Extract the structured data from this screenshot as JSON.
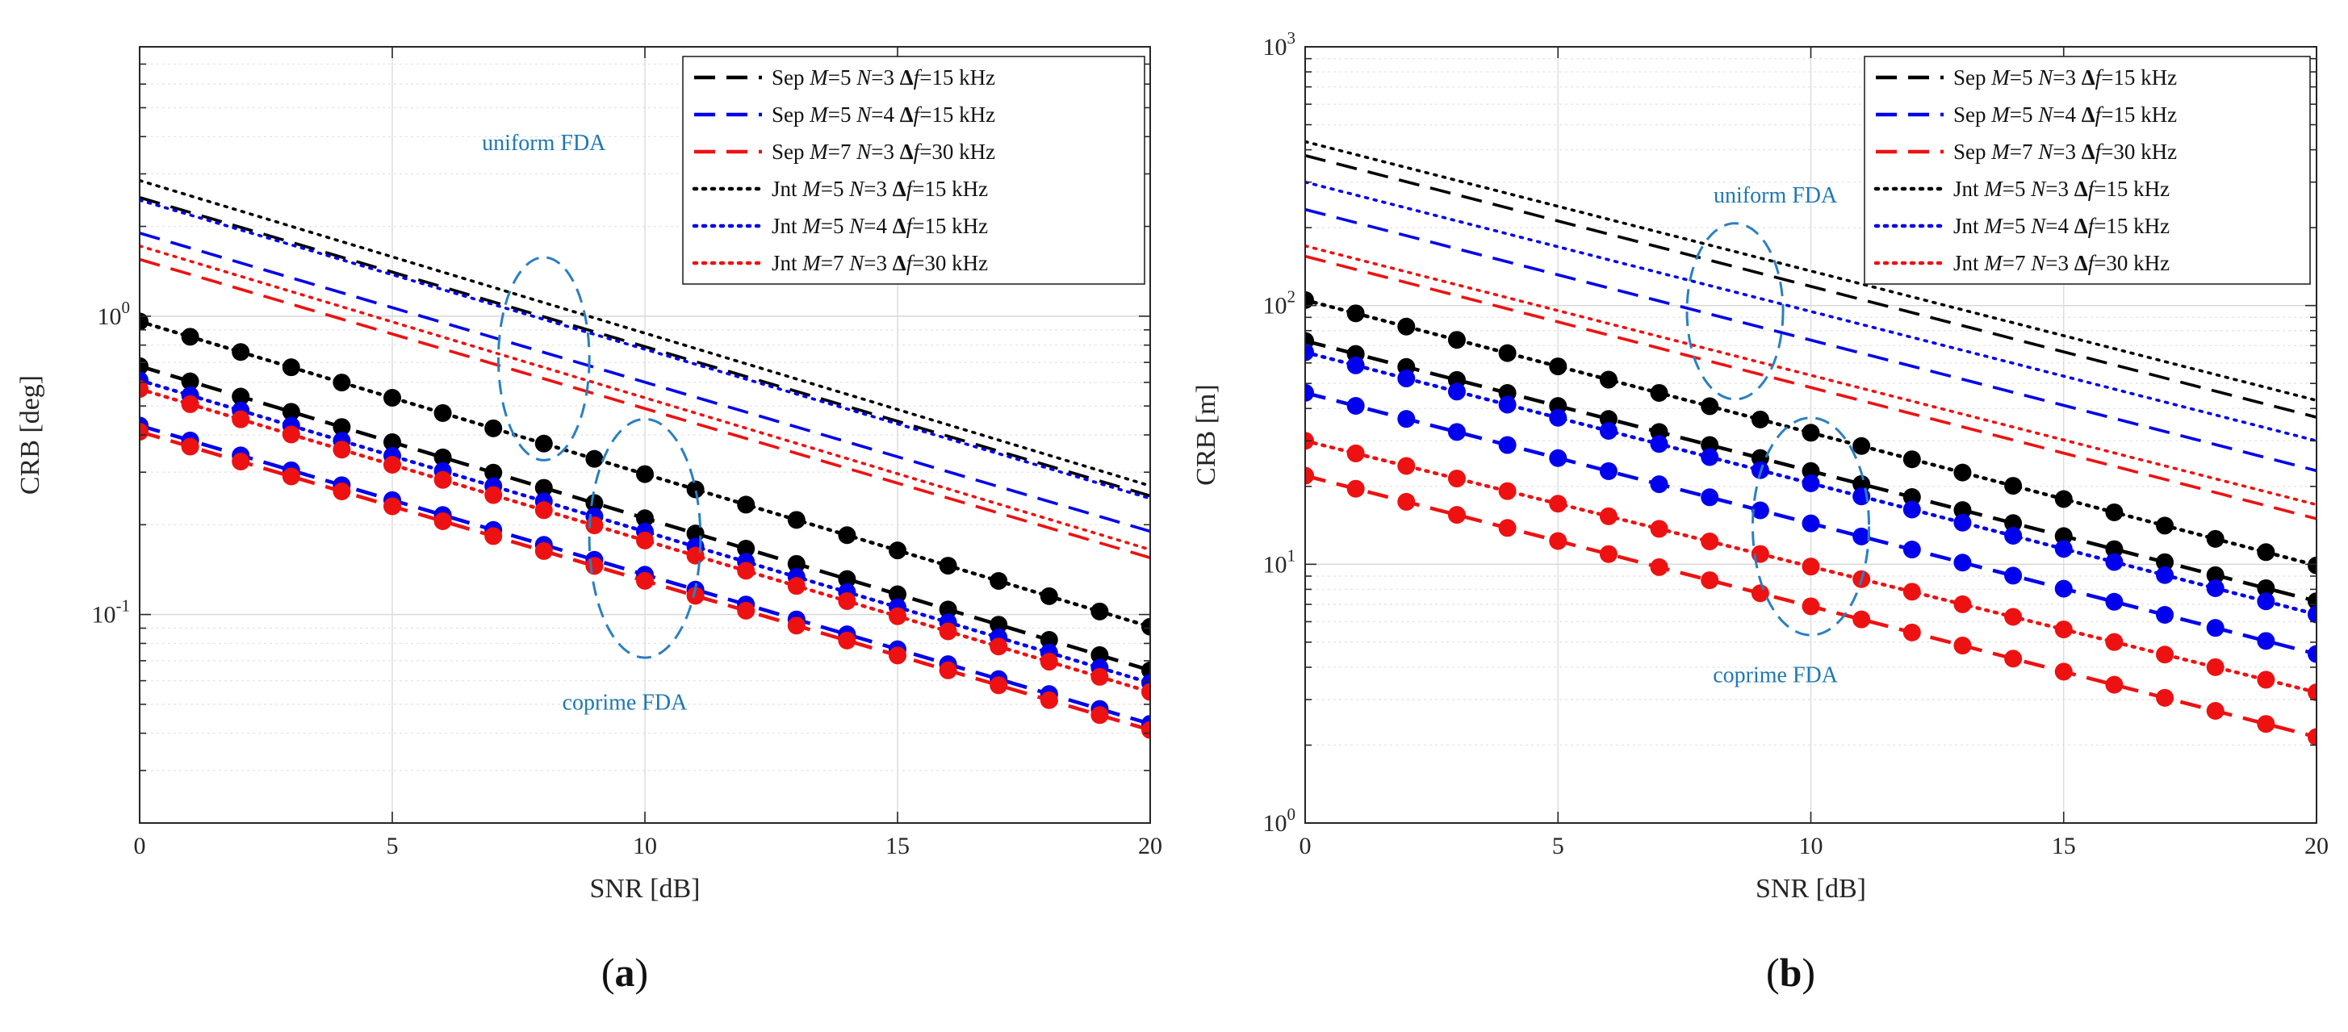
{
  "chart_data": [
    {
      "panel": "a",
      "type": "line",
      "subfigure_label": "(a)",
      "xlabel": "SNR [dB]",
      "ylabel": "CRB [deg]",
      "xlim": [
        0,
        20
      ],
      "ylim": [
        0.02,
        8
      ],
      "yscale": "log",
      "grid": true,
      "xticks": [
        0,
        5,
        10,
        15,
        20
      ],
      "xtick_labels": [
        "0",
        "5",
        "10",
        "15",
        "20"
      ],
      "yticks": [
        0.1,
        1
      ],
      "ytick_bases": [
        "10",
        "10"
      ],
      "ytick_exps": [
        "-1",
        "0"
      ],
      "legend_location": "top-right",
      "annotations": [
        {
          "text": "uniform FDA",
          "x": 8.0,
          "y": 3.6
        },
        {
          "text": "coprime FDA",
          "x": 9.6,
          "y": 0.048
        }
      ],
      "ellipses": [
        {
          "name": "uniform-ellipse",
          "cx": 8.0,
          "cy": 0.72,
          "rx": 0.9,
          "ry_dec": 0.34
        },
        {
          "name": "coprime-ellipse",
          "cx": 10.0,
          "cy": 0.18,
          "rx": 1.1,
          "ry_dec": 0.4
        }
      ],
      "series": [
        {
          "key": "sep_u1",
          "style": "dashed",
          "color": "#000000",
          "markers": false,
          "start": 2.5,
          "end": 0.25
        },
        {
          "key": "sep_u2",
          "style": "dashed",
          "color": "#0000ee",
          "markers": false,
          "start": 1.9,
          "end": 0.19
        },
        {
          "key": "sep_u3",
          "style": "dashed",
          "color": "#ee1111",
          "markers": false,
          "start": 1.55,
          "end": 0.155
        },
        {
          "key": "jnt_u1",
          "style": "dotted",
          "color": "#000000",
          "markers": false,
          "start": 2.85,
          "end": 0.27
        },
        {
          "key": "jnt_u2",
          "style": "dotted",
          "color": "#0000ee",
          "markers": false,
          "start": 2.45,
          "end": 0.245
        },
        {
          "key": "jnt_u3",
          "style": "dotted",
          "color": "#ee1111",
          "markers": false,
          "start": 1.72,
          "end": 0.165
        },
        {
          "key": "sep_c1",
          "style": "dashed",
          "color": "#000000",
          "markers": true,
          "start": 0.68,
          "end": 0.065
        },
        {
          "key": "sep_c2",
          "style": "dashed",
          "color": "#0000ee",
          "markers": true,
          "start": 0.43,
          "end": 0.043
        },
        {
          "key": "sep_c3",
          "style": "dashed",
          "color": "#ee1111",
          "markers": true,
          "start": 0.41,
          "end": 0.041
        },
        {
          "key": "jnt_c1",
          "style": "dotted",
          "color": "#000000",
          "markers": true,
          "start": 0.96,
          "end": 0.091
        },
        {
          "key": "jnt_c2",
          "style": "dotted",
          "color": "#0000ee",
          "markers": true,
          "start": 0.61,
          "end": 0.059
        },
        {
          "key": "jnt_c3",
          "style": "dotted",
          "color": "#ee1111",
          "markers": true,
          "start": 0.57,
          "end": 0.055
        }
      ]
    },
    {
      "panel": "b",
      "type": "line",
      "subfigure_label": "(b)",
      "xlabel": "SNR [dB]",
      "ylabel": "CRB [m]",
      "xlim": [
        0,
        20
      ],
      "ylim": [
        1,
        1000
      ],
      "yscale": "log",
      "grid": true,
      "xticks": [
        0,
        5,
        10,
        15,
        20
      ],
      "xtick_labels": [
        "0",
        "5",
        "10",
        "15",
        "20"
      ],
      "yticks": [
        1,
        10,
        100,
        1000
      ],
      "ytick_bases": [
        "10",
        "10",
        "10",
        "10"
      ],
      "ytick_exps": [
        "0",
        "1",
        "2",
        "3"
      ],
      "legend_location": "top-right",
      "annotations": [
        {
          "text": "uniform FDA",
          "x": 9.3,
          "y": 250
        },
        {
          "text": "coprime FDA",
          "x": 9.3,
          "y": 3.5
        }
      ],
      "ellipses": [
        {
          "name": "uniform-ellipse",
          "cx": 8.5,
          "cy": 95,
          "rx": 0.95,
          "ry_dec": 0.34
        },
        {
          "name": "coprime-ellipse",
          "cx": 10.0,
          "cy": 14,
          "rx": 1.15,
          "ry_dec": 0.42
        }
      ],
      "series": [
        {
          "key": "sep_u1",
          "style": "dashed",
          "color": "#000000",
          "markers": false,
          "start": 380,
          "end": 37
        },
        {
          "key": "sep_u2",
          "style": "dashed",
          "color": "#0000ee",
          "markers": false,
          "start": 235,
          "end": 23
        },
        {
          "key": "sep_u3",
          "style": "dashed",
          "color": "#ee1111",
          "markers": false,
          "start": 155,
          "end": 15
        },
        {
          "key": "jnt_u1",
          "style": "dotted",
          "color": "#000000",
          "markers": false,
          "start": 430,
          "end": 43
        },
        {
          "key": "jnt_u2",
          "style": "dotted",
          "color": "#0000ee",
          "markers": false,
          "start": 300,
          "end": 30
        },
        {
          "key": "jnt_u3",
          "style": "dotted",
          "color": "#ee1111",
          "markers": false,
          "start": 170,
          "end": 17
        },
        {
          "key": "sep_c1",
          "style": "dashed",
          "color": "#000000",
          "markers": true,
          "start": 73,
          "end": 7.2
        },
        {
          "key": "sep_c2",
          "style": "dashed",
          "color": "#0000ee",
          "markers": true,
          "start": 46,
          "end": 4.5
        },
        {
          "key": "sep_c3",
          "style": "dashed",
          "color": "#ee1111",
          "markers": true,
          "start": 22,
          "end": 2.15
        },
        {
          "key": "jnt_c1",
          "style": "dotted",
          "color": "#000000",
          "markers": true,
          "start": 105,
          "end": 9.9
        },
        {
          "key": "jnt_c2",
          "style": "dotted",
          "color": "#0000ee",
          "markers": true,
          "start": 66,
          "end": 6.4
        },
        {
          "key": "jnt_c3",
          "style": "dotted",
          "color": "#ee1111",
          "markers": true,
          "start": 30,
          "end": 3.2
        }
      ]
    }
  ],
  "legend": [
    {
      "style": "dashed",
      "color": "#000000",
      "method": "Sep",
      "M": "5",
      "N": "3",
      "df": "15 kHz"
    },
    {
      "style": "dashed",
      "color": "#0000ee",
      "method": "Sep",
      "M": "5",
      "N": "4",
      "df": "15 kHz"
    },
    {
      "style": "dashed",
      "color": "#ee1111",
      "method": "Sep",
      "M": "7",
      "N": "3",
      "df": "30 kHz"
    },
    {
      "style": "dotted",
      "color": "#000000",
      "method": "Jnt",
      "M": "5",
      "N": "3",
      "df": "15 kHz"
    },
    {
      "style": "dotted",
      "color": "#0000ee",
      "method": "Jnt",
      "M": "5",
      "N": "4",
      "df": "15 kHz"
    },
    {
      "style": "dotted",
      "color": "#ee1111",
      "method": "Jnt",
      "M": "7",
      "N": "3",
      "df": "30 kHz"
    }
  ]
}
